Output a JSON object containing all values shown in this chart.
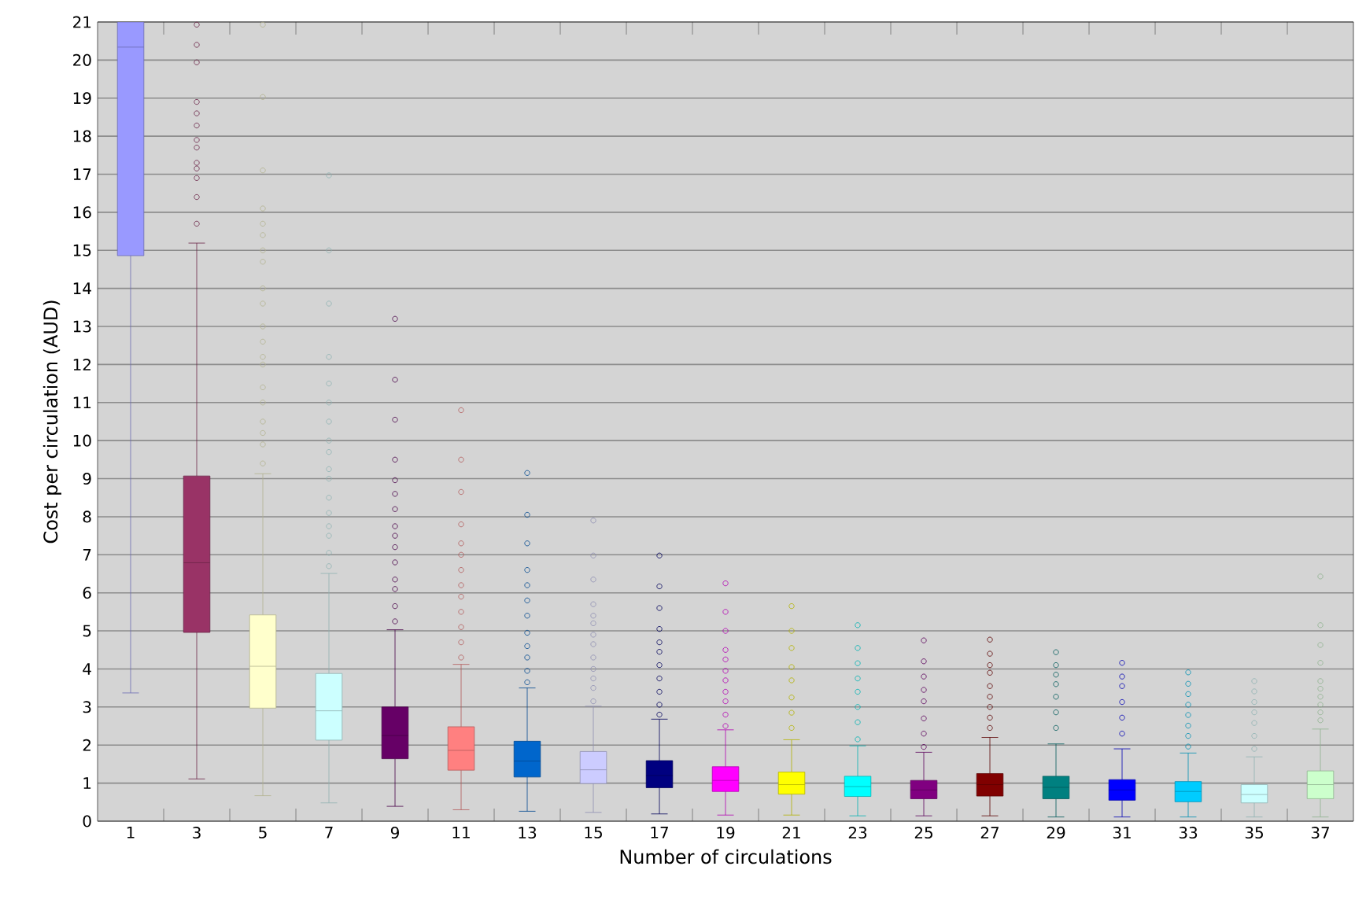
{
  "chart_data": {
    "type": "box",
    "xlabel": "Number of circulations",
    "ylabel": "Cost per circulation (AUD)",
    "categories": [
      "1",
      "3",
      "5",
      "7",
      "9",
      "11",
      "13",
      "15",
      "17",
      "19",
      "21",
      "23",
      "25",
      "27",
      "29",
      "31",
      "33",
      "35",
      "37"
    ],
    "colors": [
      "#9999ff",
      "#993366",
      "#ffffcc",
      "#ccffff",
      "#660066",
      "#ff8080",
      "#0066cc",
      "#ccccff",
      "#000080",
      "#ff00ff",
      "#ffff00",
      "#00ffff",
      "#800080",
      "#800000",
      "#008080",
      "#0000ff",
      "#00ccff",
      "#ccffff",
      "#ccffcc"
    ],
    "boxes": [
      {
        "low": 3.37,
        "q1": 14.86,
        "median": 20.34,
        "q3": 21,
        "high": 21
      },
      {
        "low": 1.11,
        "q1": 4.96,
        "median": 6.79,
        "q3": 9.07,
        "high": 15.19,
        "outliers": [
          15.7,
          16.4,
          16.9,
          17.15,
          17.3,
          17.7,
          17.9,
          18.28,
          18.6,
          18.9,
          19.94,
          20.4,
          20.93
        ]
      },
      {
        "low": 0.67,
        "q1": 2.97,
        "median": 4.07,
        "q3": 5.42,
        "high": 9.13,
        "outliers": [
          9.4,
          9.9,
          10.2,
          10.5,
          11.0,
          11.4,
          12.0,
          12.2,
          12.6,
          13.0,
          13.6,
          14.0,
          14.7,
          15.0,
          15.4,
          15.7,
          16.1,
          17.1,
          19.03,
          20.93
        ]
      },
      {
        "low": 0.48,
        "q1": 2.13,
        "median": 2.9,
        "q3": 3.88,
        "high": 6.51,
        "outliers": [
          6.7,
          7.05,
          7.5,
          7.75,
          8.1,
          8.5,
          9.0,
          9.25,
          9.7,
          10.0,
          10.5,
          11.0,
          11.5,
          12.2,
          13.6,
          15.0,
          16.97
        ]
      },
      {
        "low": 0.39,
        "q1": 1.64,
        "median": 2.25,
        "q3": 3.0,
        "high": 5.03,
        "outliers": [
          5.25,
          5.65,
          6.1,
          6.35,
          6.8,
          7.2,
          7.5,
          7.75,
          8.2,
          8.6,
          8.96,
          9.5,
          10.55,
          11.6,
          13.2
        ]
      },
      {
        "low": 0.3,
        "q1": 1.34,
        "median": 1.86,
        "q3": 2.48,
        "high": 4.12,
        "outliers": [
          4.3,
          4.7,
          5.1,
          5.5,
          5.9,
          6.2,
          6.6,
          7.0,
          7.3,
          7.8,
          8.65,
          9.5,
          10.8
        ]
      },
      {
        "low": 0.26,
        "q1": 1.16,
        "median": 1.58,
        "q3": 2.1,
        "high": 3.5,
        "outliers": [
          3.65,
          3.95,
          4.3,
          4.6,
          4.95,
          5.4,
          5.8,
          6.2,
          6.6,
          7.3,
          8.05,
          9.15
        ]
      },
      {
        "low": 0.23,
        "q1": 0.99,
        "median": 1.35,
        "q3": 1.83,
        "high": 3.02,
        "outliers": [
          3.15,
          3.5,
          3.75,
          4.0,
          4.3,
          4.65,
          4.9,
          5.2,
          5.4,
          5.7,
          6.35,
          6.98,
          7.9
        ]
      },
      {
        "low": 0.19,
        "q1": 0.88,
        "median": 1.2,
        "q3": 1.59,
        "high": 2.68,
        "outliers": [
          2.8,
          3.06,
          3.4,
          3.75,
          4.1,
          4.45,
          4.7,
          5.05,
          5.6,
          6.17,
          6.98
        ]
      },
      {
        "low": 0.16,
        "q1": 0.78,
        "median": 1.07,
        "q3": 1.43,
        "high": 2.4,
        "outliers": [
          2.5,
          2.8,
          3.15,
          3.4,
          3.7,
          3.95,
          4.25,
          4.5,
          5.0,
          5.5,
          6.25
        ]
      },
      {
        "low": 0.16,
        "q1": 0.71,
        "median": 0.96,
        "q3": 1.29,
        "high": 2.14,
        "outliers": [
          2.45,
          2.85,
          3.25,
          3.7,
          4.05,
          4.55,
          5.0,
          5.65
        ]
      },
      {
        "low": 0.14,
        "q1": 0.65,
        "median": 0.91,
        "q3": 1.18,
        "high": 1.98,
        "outliers": [
          2.15,
          2.6,
          3.0,
          3.4,
          3.75,
          4.15,
          4.55,
          5.15
        ]
      },
      {
        "low": 0.14,
        "q1": 0.59,
        "median": 0.82,
        "q3": 1.07,
        "high": 1.81,
        "outliers": [
          1.95,
          2.3,
          2.7,
          3.15,
          3.45,
          3.8,
          4.2,
          4.75
        ]
      },
      {
        "low": 0.14,
        "q1": 0.66,
        "median": 0.96,
        "q3": 1.25,
        "high": 2.2,
        "outliers": [
          2.45,
          2.72,
          3.0,
          3.27,
          3.55,
          3.9,
          4.1,
          4.4,
          4.77
        ]
      },
      {
        "low": 0.11,
        "q1": 0.59,
        "median": 0.89,
        "q3": 1.18,
        "high": 2.03,
        "outliers": [
          2.45,
          2.86,
          3.27,
          3.6,
          3.85,
          4.1,
          4.44
        ]
      },
      {
        "low": 0.11,
        "q1": 0.55,
        "median": 0.82,
        "q3": 1.09,
        "high": 1.9,
        "outliers": [
          2.3,
          2.72,
          3.13,
          3.55,
          3.8,
          4.16
        ]
      },
      {
        "low": 0.11,
        "q1": 0.51,
        "median": 0.78,
        "q3": 1.04,
        "high": 1.79,
        "outliers": [
          1.96,
          2.24,
          2.51,
          2.79,
          3.06,
          3.34,
          3.61,
          3.91
        ]
      },
      {
        "low": 0.11,
        "q1": 0.48,
        "median": 0.7,
        "q3": 0.96,
        "high": 1.69,
        "outliers": [
          1.9,
          2.24,
          2.58,
          2.86,
          3.13,
          3.41,
          3.68
        ]
      },
      {
        "low": 0.11,
        "q1": 0.59,
        "median": 0.96,
        "q3": 1.32,
        "high": 2.42,
        "outliers": [
          2.65,
          2.86,
          3.06,
          3.27,
          3.48,
          3.68,
          4.16,
          4.63,
          5.15,
          6.43
        ]
      }
    ],
    "ylim": [
      0,
      21
    ],
    "yticks": [
      0,
      1,
      2,
      3,
      4,
      5,
      6,
      7,
      8,
      9,
      10,
      11,
      12,
      13,
      14,
      15,
      16,
      17,
      18,
      19,
      20,
      21
    ],
    "grid": "y",
    "marker": "circle"
  }
}
